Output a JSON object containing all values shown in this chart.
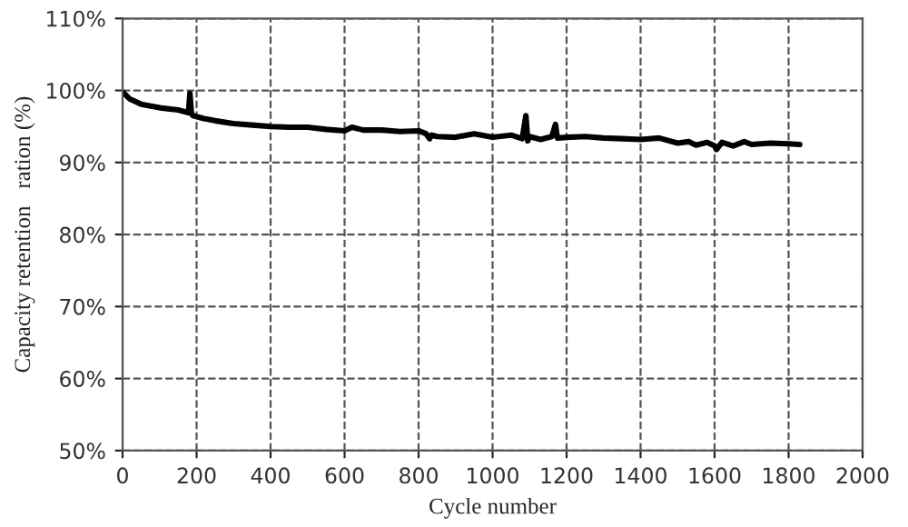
{
  "chart_data": {
    "type": "line",
    "xlabel": "Cycle number",
    "ylabel": "Capacity retention   ration (%)",
    "x": [
      0,
      10,
      20,
      50,
      100,
      150,
      178,
      182,
      186,
      190,
      220,
      250,
      300,
      350,
      400,
      450,
      500,
      550,
      600,
      620,
      650,
      700,
      750,
      800,
      820,
      830,
      835,
      850,
      900,
      950,
      1000,
      1050,
      1080,
      1090,
      1095,
      1100,
      1130,
      1160,
      1170,
      1175,
      1200,
      1250,
      1300,
      1350,
      1400,
      1450,
      1500,
      1530,
      1550,
      1580,
      1600,
      1605,
      1620,
      1650,
      1680,
      1700,
      1750,
      1800,
      1830
    ],
    "series": [
      {
        "color": "#000000",
        "values": [
          99.8,
          99.3,
          98.8,
          98.1,
          97.6,
          97.3,
          96.9,
          99.6,
          96.8,
          96.5,
          96.1,
          95.8,
          95.4,
          95.2,
          95.0,
          94.9,
          94.9,
          94.6,
          94.4,
          94.9,
          94.5,
          94.5,
          94.3,
          94.4,
          94.0,
          93.3,
          93.8,
          93.6,
          93.5,
          94.0,
          93.5,
          93.8,
          93.3,
          96.5,
          93.0,
          93.6,
          93.2,
          93.6,
          95.3,
          93.4,
          93.5,
          93.6,
          93.4,
          93.3,
          93.2,
          93.4,
          92.7,
          92.9,
          92.4,
          92.8,
          92.3,
          91.8,
          92.8,
          92.3,
          92.9,
          92.5,
          92.7,
          92.6,
          92.5
        ]
      }
    ],
    "xlim": [
      0,
      2000
    ],
    "xticks": [
      0,
      200,
      400,
      600,
      800,
      1000,
      1200,
      1400,
      1600,
      1800,
      2000
    ],
    "ylim": [
      50,
      110
    ],
    "yticks": [
      {
        "value": 50,
        "label": "50%"
      },
      {
        "value": 60,
        "label": "60%"
      },
      {
        "value": 70,
        "label": "70%"
      },
      {
        "value": 80,
        "label": "80%"
      },
      {
        "value": 90,
        "label": "90%"
      },
      {
        "value": 100,
        "label": "100%"
      },
      {
        "value": 110,
        "label": "110%"
      }
    ],
    "grid": true,
    "line_style": "solid",
    "marker": "none"
  }
}
